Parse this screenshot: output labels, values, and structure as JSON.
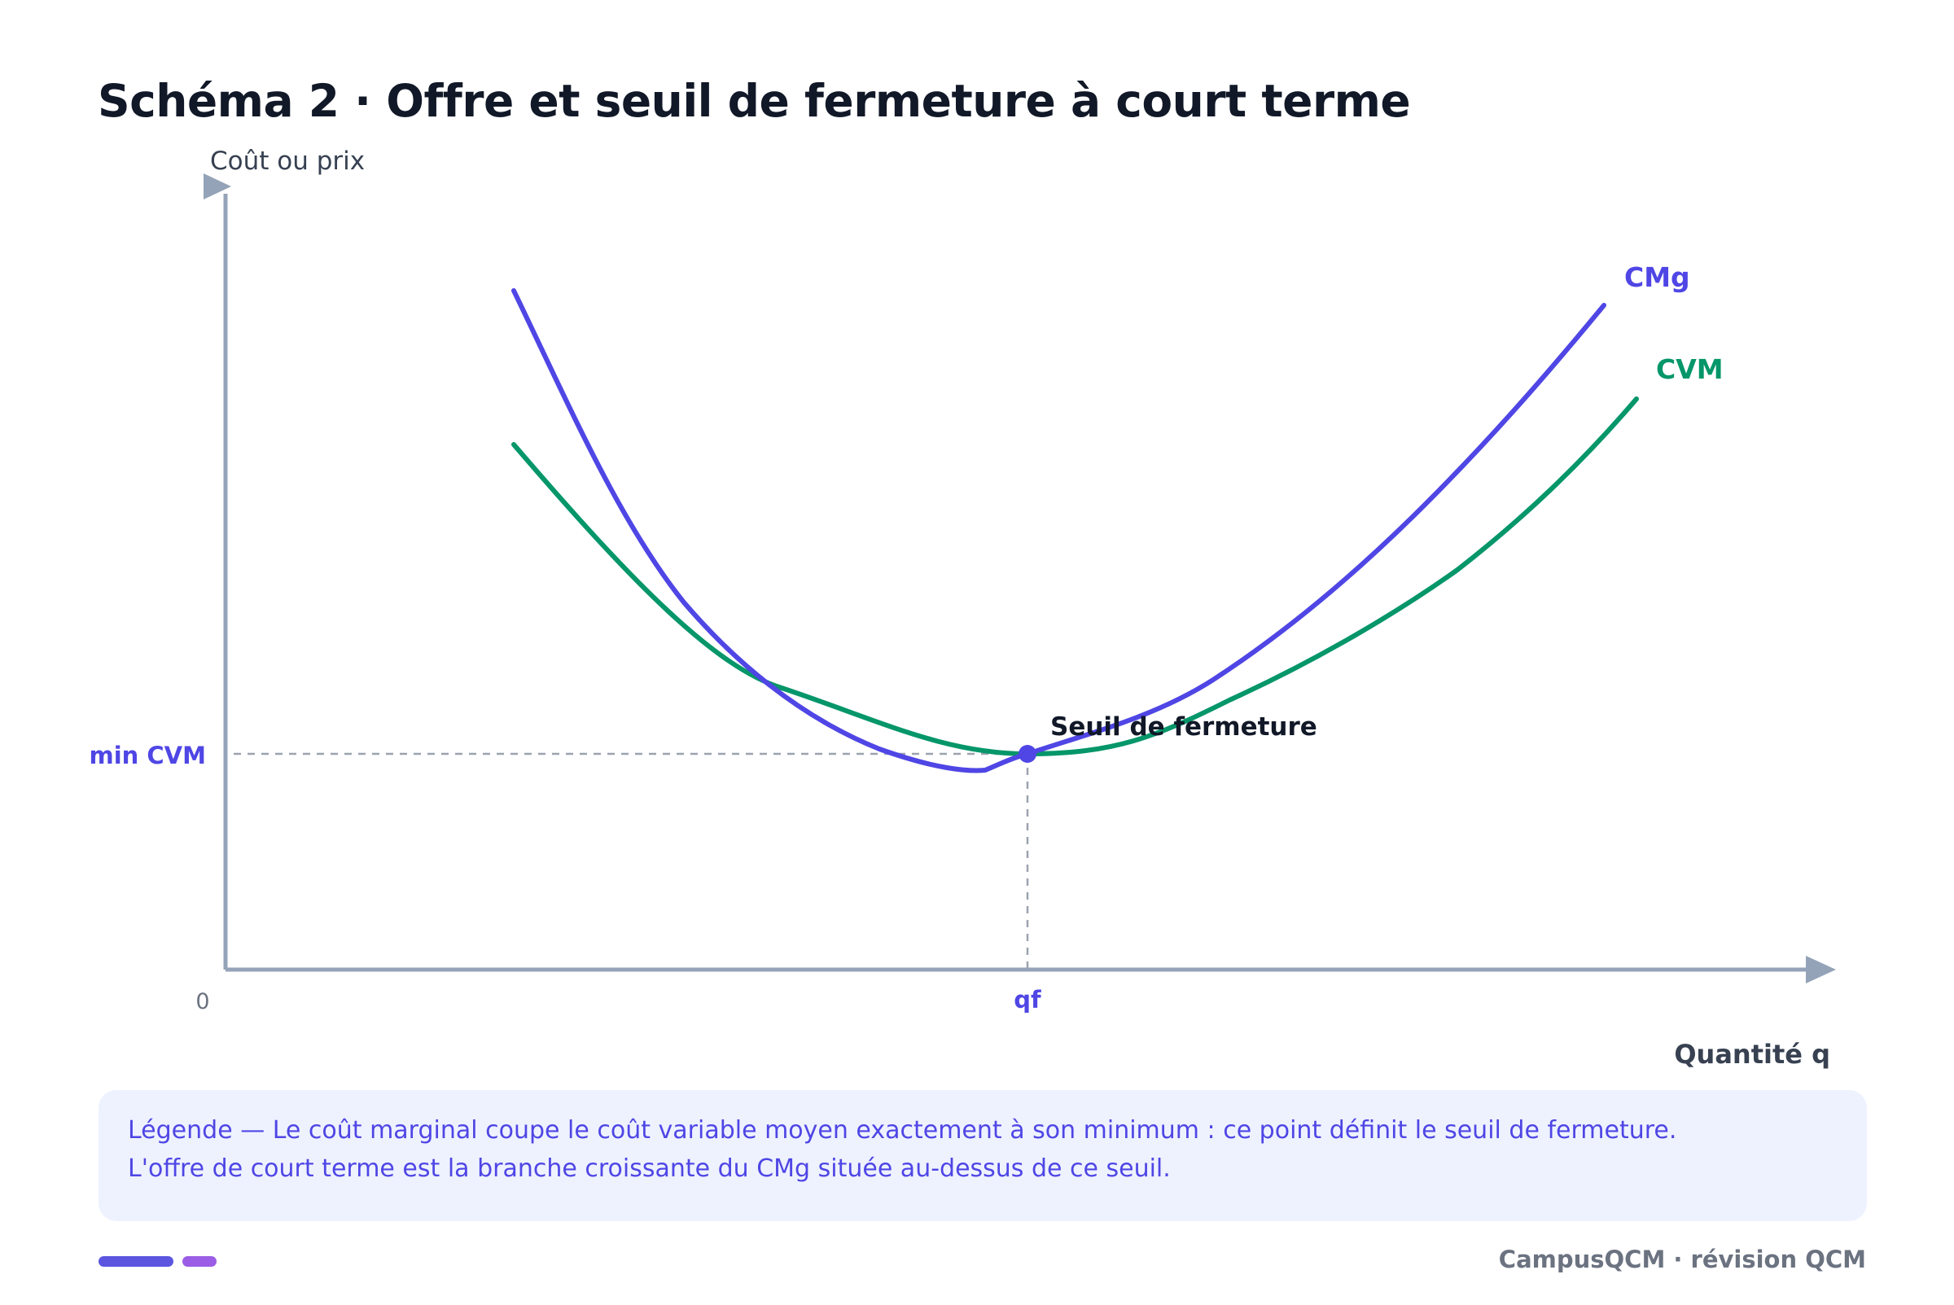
{
  "title": "Schéma 2 · Offre et seuil de fermeture à court terme",
  "diagram": {
    "axes": {
      "y_label": "Coût ou prix",
      "x_label": "Quantité q",
      "origin_label": "0",
      "x_tick_label": "qf",
      "y_tick_label": "min CVM",
      "axis_color": "#94a3b8"
    },
    "curves": [
      {
        "name": "CMg",
        "color": "#4f46e5"
      },
      {
        "name": "CVM",
        "color": "#059669"
      }
    ],
    "point": {
      "label": "Seuil de fermeture",
      "color": "#4f46e5"
    },
    "guide_color": "#9ca3af"
  },
  "legend": {
    "line1": "Légende — Le coût marginal coupe le coût variable moyen exactement à son minimum : ce point définit le seuil de fermeture.",
    "line2": "L'offre de court terme est la branche croissante du CMg située au-dessus de ce seuil."
  },
  "footer": {
    "brand": "CampusQCM · révision QCM",
    "bar_colors": [
      "#5b55e0",
      "#9b5de5"
    ]
  }
}
